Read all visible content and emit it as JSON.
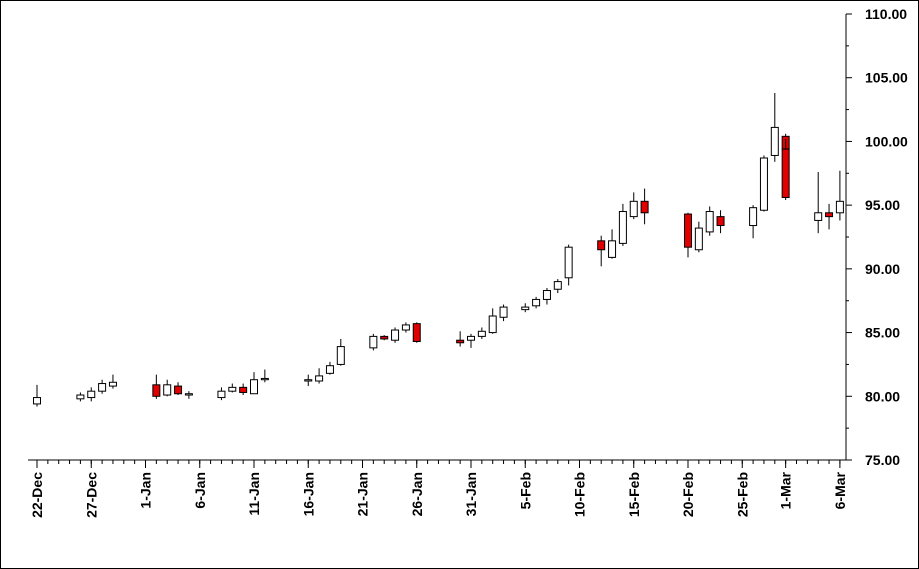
{
  "chart_data": {
    "type": "candlestick",
    "title": "",
    "xlabel": "",
    "ylabel": "",
    "ylim": [
      75,
      110
    ],
    "y_ticks": [
      "75.00",
      "80.00",
      "85.00",
      "90.00",
      "95.00",
      "100.00",
      "105.00",
      "110.00"
    ],
    "x_ticks": [
      {
        "date": "22-Dec",
        "label": "22-Dec"
      },
      {
        "date": "27-Dec",
        "label": "27-Dec"
      },
      {
        "date": "1-Jan",
        "label": "1-Jan"
      },
      {
        "date": "6-Jan",
        "label": "6-Jan"
      },
      {
        "date": "11-Jan",
        "label": "11-Jan"
      },
      {
        "date": "16-Jan",
        "label": "16-Jan"
      },
      {
        "date": "21-Jan",
        "label": "21-Jan"
      },
      {
        "date": "26-Jan",
        "label": "26-Jan"
      },
      {
        "date": "31-Jan",
        "label": "31-Jan"
      },
      {
        "date": "5-Feb",
        "label": "5-Feb"
      },
      {
        "date": "10-Feb",
        "label": "10-Feb"
      },
      {
        "date": "15-Feb",
        "label": "15-Feb"
      },
      {
        "date": "20-Feb",
        "label": "20-Feb"
      },
      {
        "date": "25-Feb",
        "label": "25-Feb"
      },
      {
        "date": "1-Mar",
        "label": "1-Mar"
      },
      {
        "date": "6-Mar",
        "label": "6-Mar"
      }
    ],
    "x_start": "22-Dec",
    "colors": {
      "up": "#ffffff",
      "down": "#e00000",
      "outline": "#000000"
    },
    "candles": [
      {
        "date": "22-Dec",
        "open": 79.4,
        "high": 80.9,
        "low": 79.2,
        "close": 79.9
      },
      {
        "date": "26-Dec",
        "open": 79.8,
        "high": 80.3,
        "low": 79.6,
        "close": 80.1
      },
      {
        "date": "27-Dec",
        "open": 79.9,
        "high": 80.7,
        "low": 79.6,
        "close": 80.4
      },
      {
        "date": "28-Dec",
        "open": 80.4,
        "high": 81.3,
        "low": 80.2,
        "close": 81.0
      },
      {
        "date": "29-Dec",
        "open": 80.8,
        "high": 81.7,
        "low": 80.6,
        "close": 81.1
      },
      {
        "date": "2-Jan",
        "open": 80.9,
        "high": 81.7,
        "low": 79.8,
        "close": 80.0
      },
      {
        "date": "3-Jan",
        "open": 80.1,
        "high": 81.3,
        "low": 80.0,
        "close": 80.9
      },
      {
        "date": "4-Jan",
        "open": 80.8,
        "high": 81.1,
        "low": 80.1,
        "close": 80.2
      },
      {
        "date": "5-Jan",
        "open": 80.1,
        "high": 80.4,
        "low": 79.8,
        "close": 80.2
      },
      {
        "date": "8-Jan",
        "open": 79.9,
        "high": 80.7,
        "low": 79.7,
        "close": 80.4
      },
      {
        "date": "9-Jan",
        "open": 80.4,
        "high": 81.0,
        "low": 80.3,
        "close": 80.7
      },
      {
        "date": "10-Jan",
        "open": 80.7,
        "high": 81.0,
        "low": 80.1,
        "close": 80.3
      },
      {
        "date": "11-Jan",
        "open": 80.2,
        "high": 81.9,
        "low": 80.2,
        "close": 81.3
      },
      {
        "date": "12-Jan",
        "open": 81.3,
        "high": 82.1,
        "low": 81.1,
        "close": 81.4
      },
      {
        "date": "16-Jan",
        "open": 81.2,
        "high": 81.7,
        "low": 80.8,
        "close": 81.3
      },
      {
        "date": "17-Jan",
        "open": 81.2,
        "high": 82.2,
        "low": 81.0,
        "close": 81.6
      },
      {
        "date": "18-Jan",
        "open": 81.8,
        "high": 82.7,
        "low": 81.7,
        "close": 82.4
      },
      {
        "date": "19-Jan",
        "open": 82.5,
        "high": 84.5,
        "low": 82.4,
        "close": 83.9
      },
      {
        "date": "22-Jan",
        "open": 83.8,
        "high": 84.9,
        "low": 83.6,
        "close": 84.7
      },
      {
        "date": "23-Jan",
        "open": 84.7,
        "high": 84.8,
        "low": 84.4,
        "close": 84.5
      },
      {
        "date": "24-Jan",
        "open": 84.4,
        "high": 85.4,
        "low": 84.2,
        "close": 85.2
      },
      {
        "date": "25-Jan",
        "open": 85.2,
        "high": 85.8,
        "low": 85.0,
        "close": 85.6
      },
      {
        "date": "26-Jan",
        "open": 85.7,
        "high": 85.8,
        "low": 84.2,
        "close": 84.3
      },
      {
        "date": "30-Jan",
        "open": 84.4,
        "high": 85.1,
        "low": 83.9,
        "close": 84.2
      },
      {
        "date": "31-Jan",
        "open": 84.4,
        "high": 84.9,
        "low": 83.8,
        "close": 84.7
      },
      {
        "date": "1-Feb",
        "open": 84.7,
        "high": 85.4,
        "low": 84.5,
        "close": 85.1
      },
      {
        "date": "2-Feb",
        "open": 85.0,
        "high": 86.9,
        "low": 84.9,
        "close": 86.3
      },
      {
        "date": "3-Feb",
        "open": 86.2,
        "high": 87.2,
        "low": 85.9,
        "close": 87.0
      },
      {
        "date": "5-Feb",
        "open": 86.8,
        "high": 87.3,
        "low": 86.6,
        "close": 87.0
      },
      {
        "date": "6-Feb",
        "open": 87.1,
        "high": 87.8,
        "low": 86.9,
        "close": 87.6
      },
      {
        "date": "7-Feb",
        "open": 87.6,
        "high": 88.5,
        "low": 87.2,
        "close": 88.3
      },
      {
        "date": "8-Feb",
        "open": 88.4,
        "high": 89.2,
        "low": 88.1,
        "close": 89.0
      },
      {
        "date": "9-Feb",
        "open": 89.3,
        "high": 91.9,
        "low": 88.7,
        "close": 91.7
      },
      {
        "date": "12-Feb",
        "open": 92.2,
        "high": 92.6,
        "low": 90.2,
        "close": 91.5
      },
      {
        "date": "13-Feb",
        "open": 90.9,
        "high": 93.1,
        "low": 90.8,
        "close": 92.2
      },
      {
        "date": "14-Feb",
        "open": 92.0,
        "high": 95.1,
        "low": 91.8,
        "close": 94.5
      },
      {
        "date": "15-Feb",
        "open": 94.1,
        "high": 96.0,
        "low": 93.9,
        "close": 95.3
      },
      {
        "date": "16-Feb",
        "open": 95.3,
        "high": 96.3,
        "low": 93.5,
        "close": 94.4
      },
      {
        "date": "20-Feb",
        "open": 94.3,
        "high": 94.4,
        "low": 90.9,
        "close": 91.7
      },
      {
        "date": "21-Feb",
        "open": 91.5,
        "high": 93.7,
        "low": 91.3,
        "close": 93.2
      },
      {
        "date": "22-Feb",
        "open": 92.9,
        "high": 94.9,
        "low": 92.6,
        "close": 94.5
      },
      {
        "date": "23-Feb",
        "open": 94.1,
        "high": 94.6,
        "low": 92.8,
        "close": 93.4
      },
      {
        "date": "26-Feb",
        "open": 93.4,
        "high": 95.0,
        "low": 92.4,
        "close": 94.8
      },
      {
        "date": "27-Feb",
        "open": 94.6,
        "high": 98.9,
        "low": 94.5,
        "close": 98.7
      },
      {
        "date": "28-Feb",
        "open": 98.9,
        "high": 103.8,
        "low": 98.4,
        "close": 101.1
      },
      {
        "date": "29-Feb",
        "open": 100.4,
        "high": 100.6,
        "low": 97.3,
        "close": 99.4
      },
      {
        "date": "1-Mar",
        "open": 99.4,
        "high": 100.2,
        "low": 95.4,
        "close": 95.6
      },
      {
        "date": "4-Mar",
        "open": 93.8,
        "high": 97.6,
        "low": 92.8,
        "close": 94.4
      },
      {
        "date": "5-Mar",
        "open": 94.4,
        "high": 95.1,
        "low": 93.1,
        "close": 94.1
      },
      {
        "date": "6-Mar",
        "open": 94.4,
        "high": 97.7,
        "low": 93.8,
        "close": 95.3
      }
    ]
  }
}
